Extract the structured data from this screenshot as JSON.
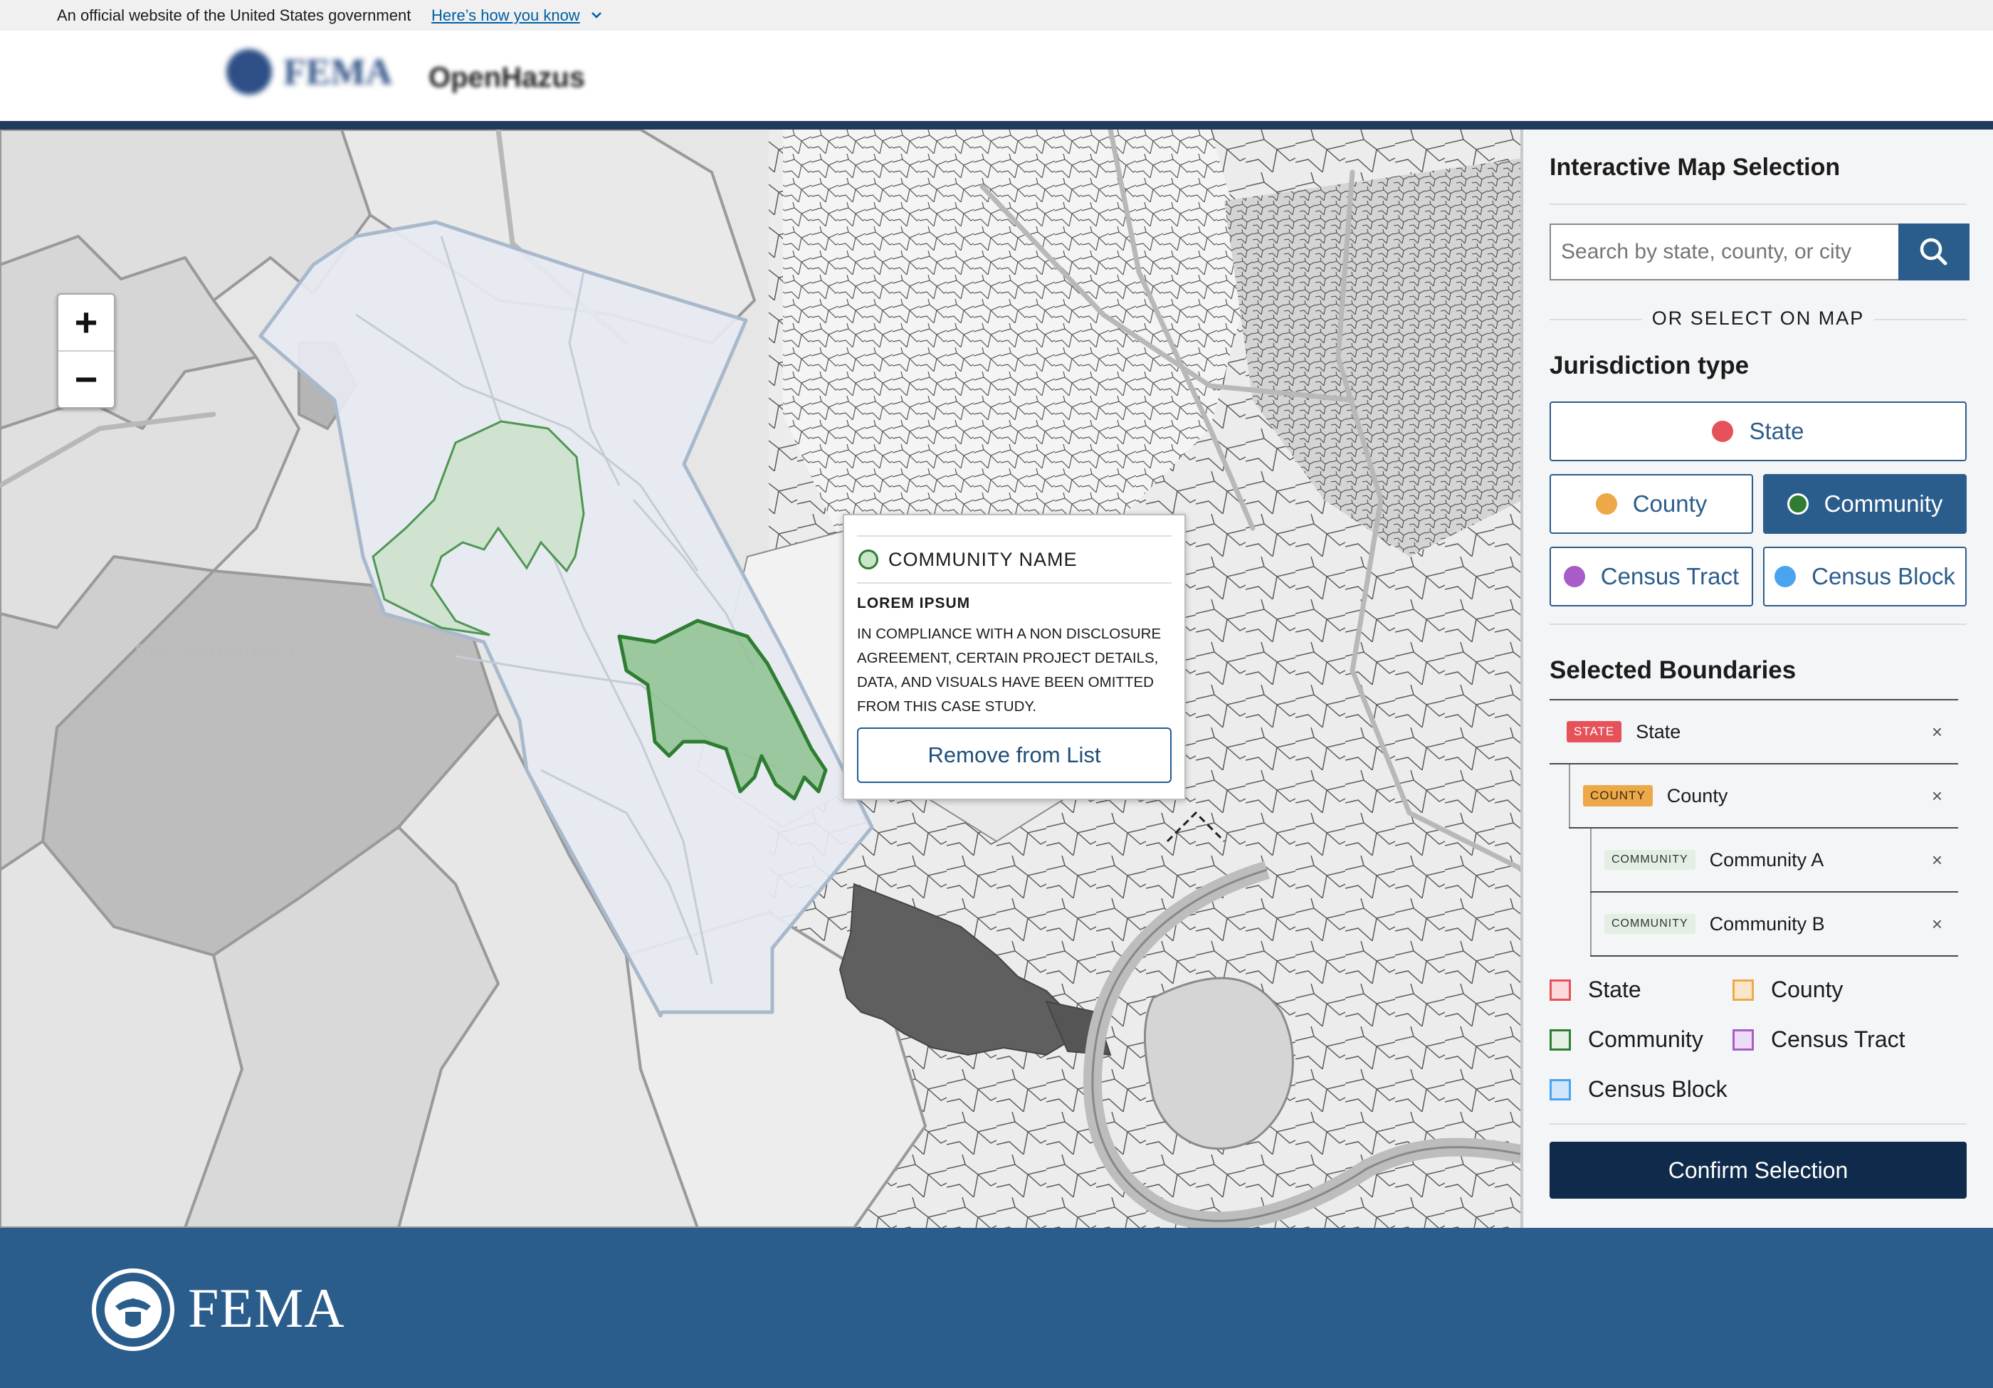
{
  "gov_banner": {
    "text": "An official website of the United States government",
    "link": "Here’s how you know"
  },
  "header": {
    "logo_text": "FEMA",
    "app_name": "OpenHazus"
  },
  "map": {
    "zoom_in": "+",
    "zoom_out": "−",
    "popup": {
      "title": "COMMUNITY NAME",
      "subtitle": "LOREM IPSUM",
      "body": "IN COMPLIANCE WITH A NON DISCLOSURE AGREEMENT, CERTAIN PROJECT DETAILS, DATA, AND VISUALS HAVE BEEN OMITTED FROM THIS CASE STUDY.",
      "button": "Remove from List"
    }
  },
  "panel": {
    "title": "Interactive Map Selection",
    "search_placeholder": "Search by state, county, or city",
    "divider": "OR SELECT ON MAP",
    "jurisdiction_heading": "Jurisdiction type",
    "jurisdiction_types": [
      {
        "label": "State",
        "color": "#e5525a",
        "active": false
      },
      {
        "label": "County",
        "color": "#eda848",
        "active": false
      },
      {
        "label": "Community",
        "color": "#2e7d32",
        "active": true
      },
      {
        "label": "Census Tract",
        "color": "#a75cc8",
        "active": false
      },
      {
        "label": "Census Block",
        "color": "#4aa3ef",
        "active": false
      }
    ],
    "selected_heading": "Selected Boundaries",
    "selected": [
      {
        "badge": "STATE",
        "label": "State",
        "remove": "×"
      },
      {
        "badge": "COUNTY",
        "label": "County",
        "remove": "×"
      },
      {
        "badge": "COMMUNITY",
        "label": "Community A",
        "remove": "×"
      },
      {
        "badge": "COMMUNITY",
        "label": "Community B",
        "remove": "×"
      }
    ],
    "legend": [
      {
        "label": "State",
        "stroke": "#e5525a",
        "fill": "#fbd9db"
      },
      {
        "label": "County",
        "stroke": "#eda848",
        "fill": "#fae7cb"
      },
      {
        "label": "Community",
        "stroke": "#2e7d32",
        "fill": "#e6f1e6"
      },
      {
        "label": "Census Tract",
        "stroke": "#a75cc8",
        "fill": "#eddcf5"
      },
      {
        "label": "Census Block",
        "stroke": "#4aa3ef",
        "fill": "#cfe6fb"
      }
    ],
    "confirm": "Confirm Selection"
  },
  "footer": {
    "name": "FEMA"
  }
}
